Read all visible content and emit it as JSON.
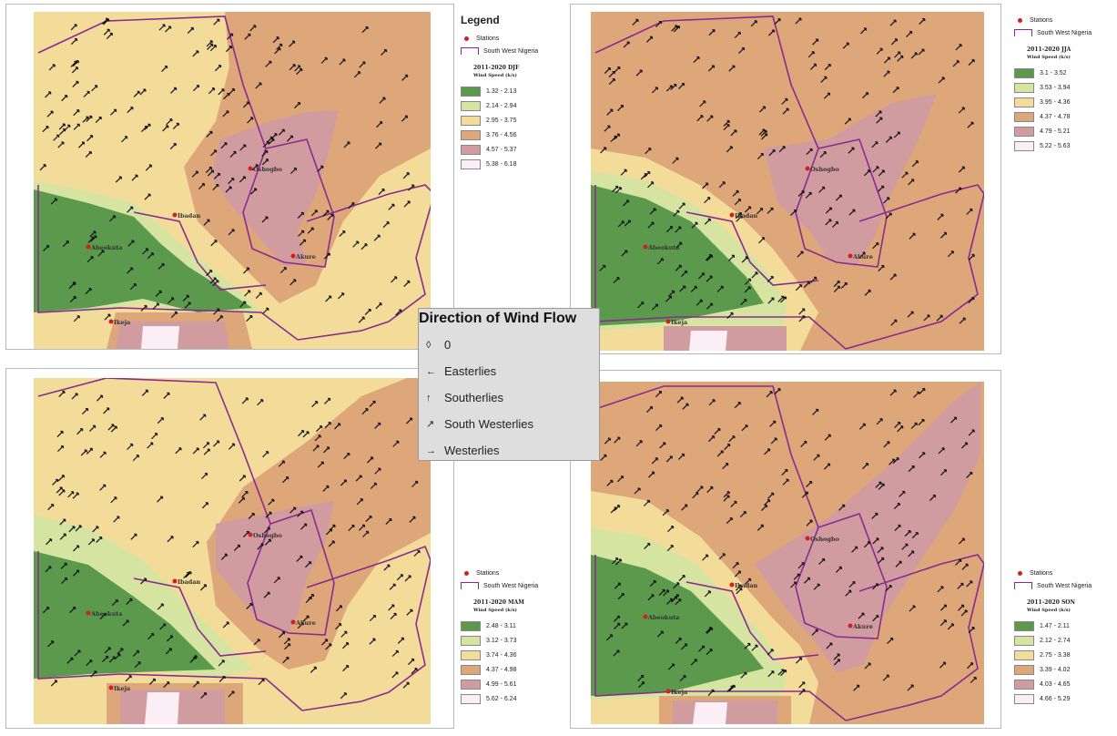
{
  "colors": {
    "class1": "#5b9a4d",
    "class2": "#d6e4a2",
    "class3": "#f3dc9a",
    "class4": "#dda77a",
    "class5": "#d19c9f",
    "class6": "#fbeef4",
    "boundary": "#8b2a8e",
    "station": "#d21f1f"
  },
  "stations": {
    "ogbomosho": "Oshogbo",
    "ibadan": "Ibadan",
    "abeokuta": "Abeokuta",
    "akure": "Akure",
    "ikeja": "Ikeja"
  },
  "legend_common": {
    "stations_label": "Stations",
    "boundary_label": "South West Nigeria"
  },
  "panels": [
    {
      "legend_title": "Legend",
      "period": "2011-2020 DJF",
      "unit": "Wind Speed (k/s)",
      "classes": [
        "1.32 - 2.13",
        "2.14 - 2.94",
        "2.95 - 3.75",
        "3.76 - 4.56",
        "4.57 - 5.37",
        "5.38 - 6.18"
      ]
    },
    {
      "legend_title": "",
      "period": "2011-2020 JJA",
      "unit": "Wind Speed (k/s)",
      "classes": [
        "3.1 - 3.52",
        "3.53 - 3.94",
        "3.95 - 4.36",
        "4.37 - 4.78",
        "4.79 - 5.21",
        "5.22 - 5.63"
      ]
    },
    {
      "legend_title": "",
      "period": "2011-2020 MAM",
      "unit": "Wind Speed (k/s)",
      "classes": [
        "2.48 - 3.11",
        "3.12 - 3.73",
        "3.74 - 4.36",
        "4.37 - 4.98",
        "4.99 - 5.61",
        "5.62 - 6.24"
      ]
    },
    {
      "legend_title": "",
      "period": "2011-2020 SON",
      "unit": "Wind Speed (k/s)",
      "classes": [
        "1.47 - 2.11",
        "2.12 - 2.74",
        "2.75 - 3.38",
        "3.39 - 4.02",
        "4.03 - 4.65",
        "4.66 - 5.29"
      ]
    }
  ],
  "wind_flow_legend": {
    "title": "Direction of Wind Flow",
    "items": [
      {
        "symbol": "◊",
        "label": "0"
      },
      {
        "symbol": "←",
        "label": "Easterlies"
      },
      {
        "symbol": "↑",
        "label": "Southerlies"
      },
      {
        "symbol": "↗",
        "label": "South Westerlies"
      },
      {
        "symbol": "→",
        "label": "Westerlies"
      }
    ]
  }
}
